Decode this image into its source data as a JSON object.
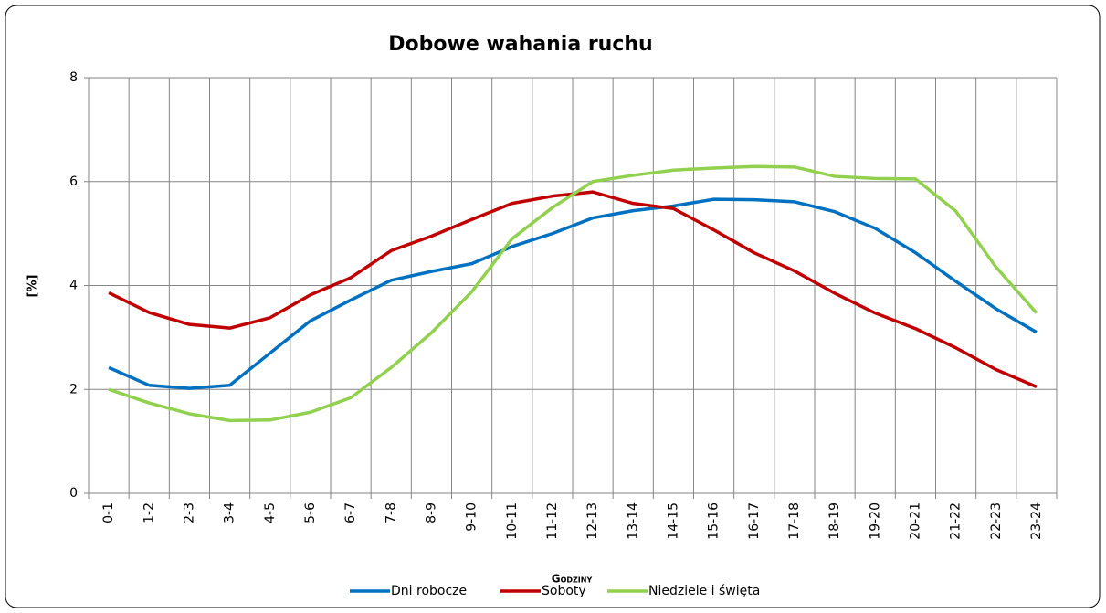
{
  "chart_data": {
    "type": "line",
    "title": "Dobowe wahania ruchu",
    "y_label": "[%]",
    "x_label": "Godziny",
    "categories": [
      "0-1",
      "1-2",
      "2-3",
      "3-4",
      "4-5",
      "5-6",
      "6-7",
      "7-8",
      "8-9",
      "9-10",
      "10-11",
      "11-12",
      "12-13",
      "13-14",
      "14-15",
      "15-16",
      "16-17",
      "17-18",
      "18-19",
      "19-20",
      "20-21",
      "21-22",
      "22-23",
      "23-24"
    ],
    "series": [
      {
        "name": "Dni robocze",
        "color": "#0070c0",
        "values": [
          2.42,
          2.08,
          2.02,
          2.08,
          2.7,
          3.32,
          3.72,
          4.1,
          4.27,
          4.42,
          4.75,
          5.0,
          5.3,
          5.44,
          5.53,
          5.66,
          5.65,
          5.61,
          5.42,
          5.1,
          4.63,
          4.08,
          3.55,
          3.1
        ]
      },
      {
        "name": "Soboty",
        "color": "#c00000",
        "values": [
          3.86,
          3.48,
          3.25,
          3.18,
          3.38,
          3.82,
          4.15,
          4.67,
          4.95,
          5.27,
          5.58,
          5.72,
          5.8,
          5.58,
          5.48,
          5.07,
          4.63,
          4.28,
          3.85,
          3.47,
          3.17,
          2.8,
          2.38,
          2.05
        ]
      },
      {
        "name": "Niedziele i święta",
        "color": "#92d050",
        "values": [
          2.0,
          1.74,
          1.53,
          1.4,
          1.41,
          1.56,
          1.84,
          2.42,
          3.09,
          3.88,
          4.9,
          5.5,
          6.0,
          6.12,
          6.22,
          6.26,
          6.29,
          6.28,
          6.1,
          6.06,
          6.05,
          5.43,
          4.35,
          3.47
        ]
      }
    ],
    "ylim": [
      0,
      8
    ],
    "yticks": [
      0,
      2,
      4,
      6,
      8
    ],
    "grid": true
  }
}
